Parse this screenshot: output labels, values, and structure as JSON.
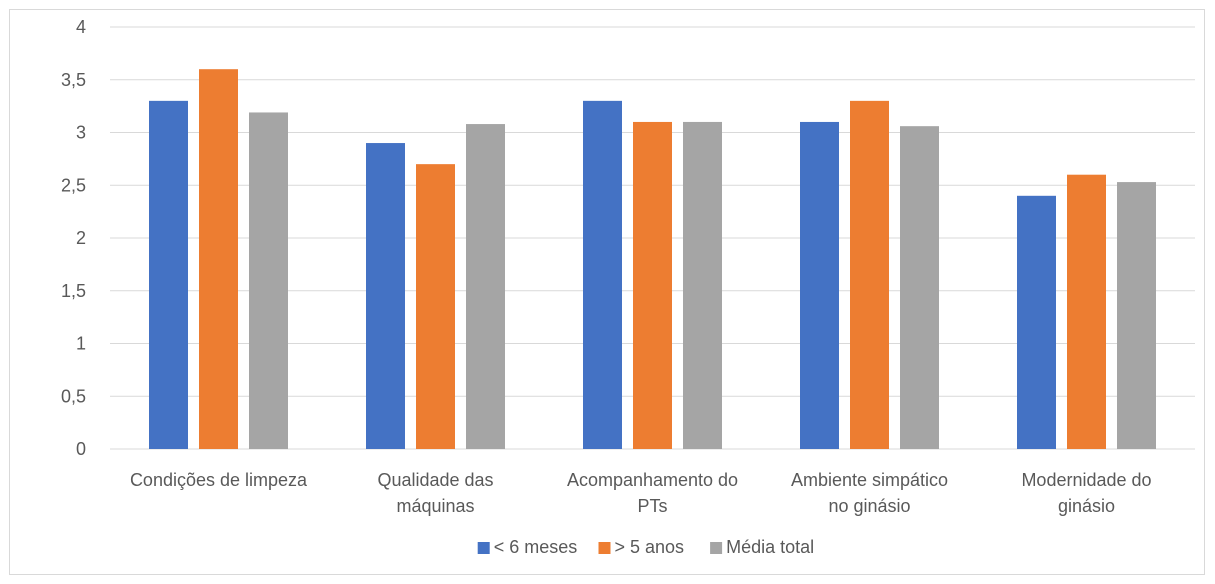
{
  "chart_data": {
    "type": "bar",
    "title": "",
    "xlabel": "",
    "ylabel": "",
    "categories": [
      [
        "Condições de limpeza"
      ],
      [
        "Qualidade das",
        "máquinas"
      ],
      [
        "Acompanhamento do",
        "PTs"
      ],
      [
        "Ambiente simpático",
        "no ginásio"
      ],
      [
        "Modernidade do",
        "ginásio"
      ]
    ],
    "series": [
      {
        "name": "< 6 meses",
        "color": "#4472c4",
        "values": [
          3.3,
          2.9,
          3.3,
          3.1,
          2.4
        ]
      },
      {
        "name": "> 5 anos",
        "color": "#ed7d31",
        "values": [
          3.6,
          2.7,
          3.1,
          3.3,
          2.6
        ]
      },
      {
        "name": "Média total",
        "color": "#a5a5a5",
        "values": [
          3.19,
          3.08,
          3.1,
          3.06,
          2.53
        ]
      }
    ],
    "ylim": [
      0,
      4
    ],
    "yticks": [
      "0",
      "0,5",
      "1",
      "1,5",
      "2",
      "2,5",
      "3",
      "3,5",
      "4"
    ],
    "grid": true,
    "legend_position": "bottom"
  }
}
